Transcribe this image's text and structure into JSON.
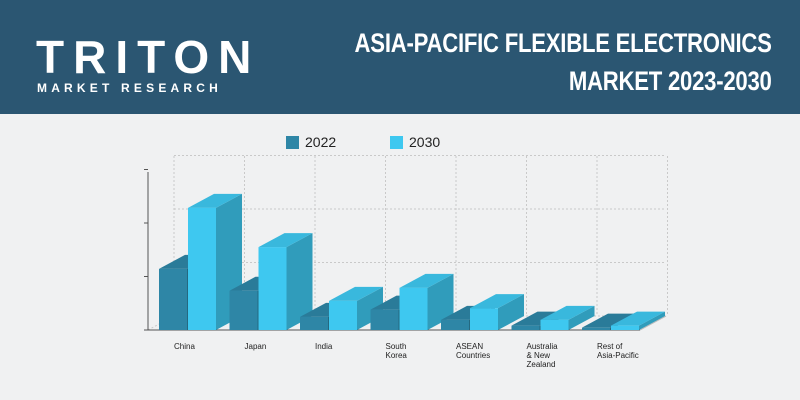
{
  "brand": {
    "name_top": "TRITON",
    "name_bottom": "MARKET RESEARCH"
  },
  "header": {
    "title_line1": "ASIA-PACIFIC FLEXIBLE ELECTRONICS",
    "title_line2": "MARKET 2023-2030"
  },
  "colors": {
    "header_bg": "#2b5672",
    "series_2022": "#2e86a6",
    "series_2030": "#3ec8f0",
    "accent": "#1a8fd6"
  },
  "chart_data": {
    "type": "bar",
    "categories": [
      [
        "China"
      ],
      [
        "Japan"
      ],
      [
        "India"
      ],
      [
        "South",
        "Korea"
      ],
      [
        "ASEAN",
        "Countries"
      ],
      [
        "Australia",
        "& New",
        "Zealand"
      ],
      [
        "Rest of",
        "Asia-Pacific"
      ]
    ],
    "series": [
      {
        "name": "2022",
        "values": [
          2.1,
          1.35,
          0.45,
          0.7,
          0.35,
          0.15,
          0.08
        ]
      },
      {
        "name": "2030",
        "values": [
          4.2,
          2.85,
          1.0,
          1.45,
          0.75,
          0.35,
          0.15
        ]
      }
    ],
    "ylim": [
      0,
      5.5
    ],
    "legend_position": "top",
    "grid": true
  }
}
